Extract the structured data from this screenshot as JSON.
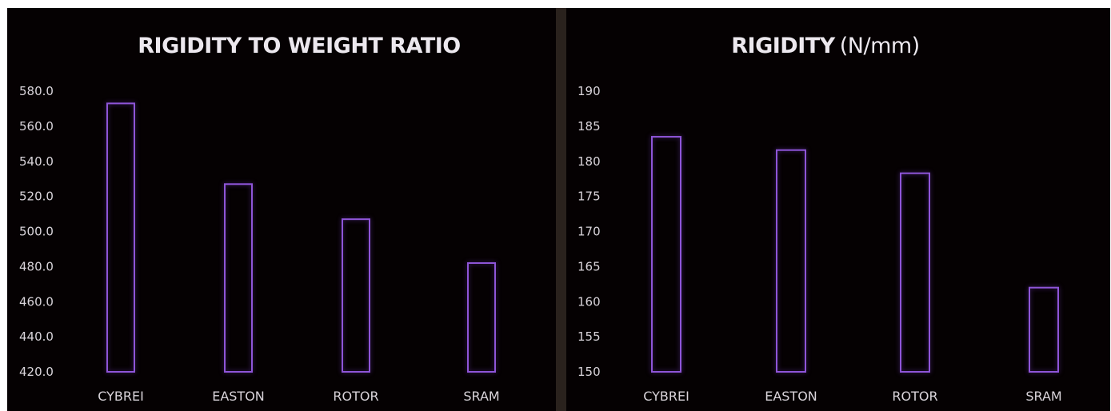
{
  "chart_data": [
    {
      "type": "bar",
      "title": "RIGIDITY TO WEIGHT RATIO",
      "xlabel": "",
      "ylabel": "",
      "categories": [
        "CYBREI",
        "EASTON",
        "ROTOR",
        "SRAM"
      ],
      "values": [
        573,
        527,
        507,
        482
      ],
      "ylim": [
        420,
        580
      ],
      "yticks": [
        420,
        440,
        460,
        480,
        500,
        520,
        540,
        560,
        580
      ],
      "ytick_labels": [
        "420.0",
        "440.0",
        "460.0",
        "480.0",
        "500.0",
        "520.0",
        "540.0",
        "560.0",
        "580.0"
      ],
      "grid": false,
      "legend": "none",
      "bar_style": "outline",
      "bar_color": "#8e55d8"
    },
    {
      "type": "bar",
      "title": "RIGIDITY",
      "title_unit": "(N/mm)",
      "xlabel": "",
      "ylabel": "",
      "categories": [
        "CYBREI",
        "EASTON",
        "ROTOR",
        "SRAM"
      ],
      "values": [
        183.5,
        181.6,
        178.3,
        162.0
      ],
      "ylim": [
        150,
        190
      ],
      "yticks": [
        150,
        155,
        160,
        165,
        170,
        175,
        180,
        185,
        190
      ],
      "ytick_labels": [
        "150",
        "155",
        "160",
        "165",
        "170",
        "175",
        "180",
        "185",
        "190"
      ],
      "grid": false,
      "legend": "none",
      "bar_style": "outline",
      "bar_color": "#8e55d8"
    }
  ],
  "colors": {
    "background": "#050102",
    "divider": "#2a221d",
    "bar_outline": "#8e55d8",
    "text": "#d9d4da"
  }
}
